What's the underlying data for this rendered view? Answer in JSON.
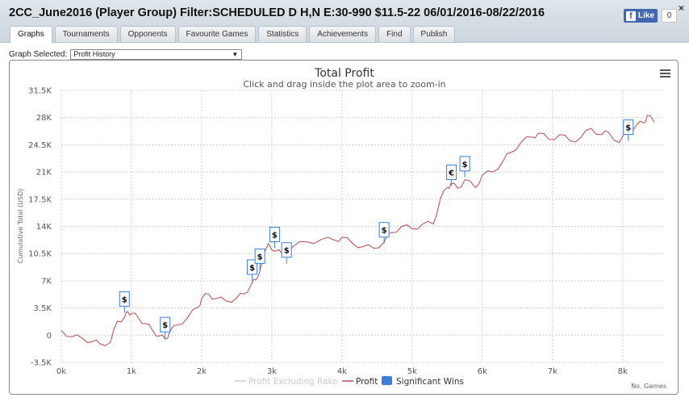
{
  "window": {
    "title": "2CC_June2016 (Player Group) Filter:SCHEDULED D H,N E:30-990 $11.5-22 06/01/2016-08/22/2016",
    "like_label": "Like",
    "like_count": "0",
    "close_glyph": "×"
  },
  "tabs": [
    {
      "label": "Graphs",
      "active": true
    },
    {
      "label": "Tournaments"
    },
    {
      "label": "Opponents"
    },
    {
      "label": "Favourite Games"
    },
    {
      "label": "Statistics"
    },
    {
      "label": "Achievements"
    },
    {
      "label": "Find"
    },
    {
      "label": "Publish"
    }
  ],
  "graph_select": {
    "label": "Graph Selected:",
    "value": "Profit History"
  },
  "chart_data": {
    "type": "line",
    "title": "Total Profit",
    "subtitle": "Click and drag inside the plot area to zoom-in",
    "ylabel": "Cumulative Total (USD)",
    "xlabel": "No. Games",
    "xlim": [
      0,
      8600
    ],
    "ylim": [
      -3500,
      31500
    ],
    "x_ticks": [
      0,
      1000,
      2000,
      3000,
      4000,
      5000,
      6000,
      7000,
      8000
    ],
    "x_tick_labels": [
      "0k",
      "1k",
      "2k",
      "3k",
      "4k",
      "5k",
      "6k",
      "7k",
      "8k"
    ],
    "y_ticks": [
      -3500,
      0,
      3500,
      7000,
      10500,
      14000,
      17500,
      21000,
      24500,
      28000,
      31500
    ],
    "y_tick_labels": [
      "-3.5K",
      "0",
      "3.5K",
      "7K",
      "10.5K",
      "14K",
      "17.5K",
      "21K",
      "24.5K",
      "28K",
      "31.5K"
    ],
    "grid": true,
    "legend_position": "bottom-center",
    "colors": {
      "profit": "#b84a4a",
      "rake": "#cccccc",
      "wins": "#3c7fd4"
    },
    "series": [
      {
        "name": "Profit",
        "x": [
          0,
          150,
          300,
          450,
          550,
          700,
          800,
          900,
          950,
          1000,
          1100,
          1200,
          1300,
          1400,
          1480,
          1550,
          1650,
          1800,
          1950,
          2000,
          2100,
          2200,
          2350,
          2500,
          2600,
          2700,
          2780,
          2850,
          2950,
          3050,
          3150,
          3300,
          3500,
          3700,
          3900,
          4000,
          4150,
          4300,
          4450,
          4600,
          4700,
          4850,
          5000,
          5150,
          5300,
          5400,
          5500,
          5550,
          5650,
          5750,
          5900,
          6000,
          6150,
          6300,
          6400,
          6550,
          6700,
          6800,
          6950,
          7100,
          7250,
          7400,
          7550,
          7700,
          7800,
          7950,
          8100,
          8200,
          8300,
          8350,
          8450
        ],
        "y": [
          600,
          -200,
          -400,
          -800,
          -1100,
          -900,
          1800,
          2300,
          3000,
          2800,
          2200,
          1500,
          600,
          -100,
          -500,
          500,
          1300,
          2300,
          3600,
          4700,
          5300,
          4700,
          4400,
          4800,
          5300,
          6400,
          7200,
          9000,
          11800,
          10800,
          10500,
          11400,
          12000,
          12300,
          12200,
          12600,
          11800,
          11400,
          11200,
          12000,
          13200,
          14000,
          13700,
          14300,
          14300,
          17500,
          19000,
          19500,
          18900,
          20000,
          19000,
          20600,
          21000,
          22500,
          23500,
          24800,
          25500,
          26000,
          25200,
          25800,
          25000,
          25400,
          26600,
          25800,
          26100,
          24800,
          26400,
          27100,
          27300,
          28300,
          27400
        ]
      },
      {
        "name": "Profit Excluding Rake",
        "values": []
      },
      {
        "name": "Significant Wins",
        "values": []
      }
    ],
    "flags": [
      {
        "x": 900,
        "y": 2900,
        "symbol": "$"
      },
      {
        "x": 1480,
        "y": -400,
        "symbol": "$"
      },
      {
        "x": 2720,
        "y": 7000,
        "symbol": "$"
      },
      {
        "x": 2830,
        "y": 8400,
        "symbol": "$"
      },
      {
        "x": 3040,
        "y": 11200,
        "symbol": "$"
      },
      {
        "x": 3210,
        "y": 9200,
        "symbol": "$"
      },
      {
        "x": 4600,
        "y": 11800,
        "symbol": "$"
      },
      {
        "x": 5560,
        "y": 19200,
        "symbol": "€"
      },
      {
        "x": 5750,
        "y": 20300,
        "symbol": "$"
      },
      {
        "x": 8080,
        "y": 25000,
        "symbol": "$"
      }
    ]
  }
}
